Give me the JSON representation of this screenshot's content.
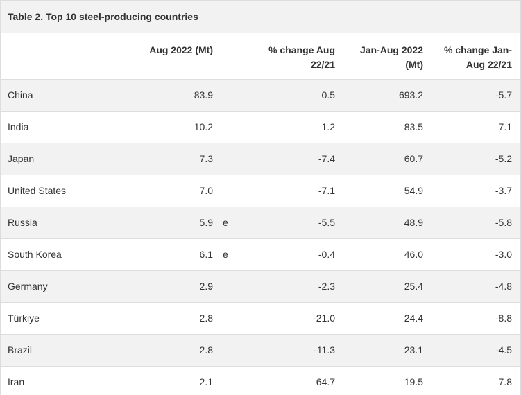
{
  "table": {
    "title": "Table 2. Top 10 steel-producing countries",
    "headers": [
      "Aug 2022 (Mt)",
      "% change Aug 22/21",
      "Jan-Aug 2022 (Mt)",
      "% change Jan-Aug 22/21"
    ],
    "rows": [
      {
        "country": "China",
        "cells": [
          "83.9",
          "0.5",
          "693.2",
          "-5.7"
        ]
      },
      {
        "country": "India",
        "cells": [
          "10.2",
          "1.2",
          "83.5",
          "7.1"
        ]
      },
      {
        "country": "Japan",
        "cells": [
          "7.3",
          "-7.4",
          "60.7",
          "-5.2"
        ]
      },
      {
        "country": "United States",
        "cells": [
          "7.0",
          "-7.1",
          "54.9",
          "-3.7"
        ]
      },
      {
        "country": "Russia",
        "cells": [
          "5.9",
          "-5.5",
          "48.9",
          "-5.8"
        ],
        "flag": "e"
      },
      {
        "country": "South Korea",
        "cells": [
          "6.1",
          "-0.4",
          "46.0",
          "-3.0"
        ],
        "flag": "e"
      },
      {
        "country": "Germany",
        "cells": [
          "2.9",
          "-2.3",
          "25.4",
          "-4.8"
        ]
      },
      {
        "country": "Türkiye",
        "cells": [
          "2.8",
          "-21.0",
          "24.4",
          "-8.8"
        ]
      },
      {
        "country": "Brazil",
        "cells": [
          "2.8",
          "-11.3",
          "23.1",
          "-4.5"
        ]
      },
      {
        "country": "Iran",
        "cells": [
          "2.1",
          "64.7",
          "19.5",
          "7.8"
        ]
      }
    ]
  }
}
